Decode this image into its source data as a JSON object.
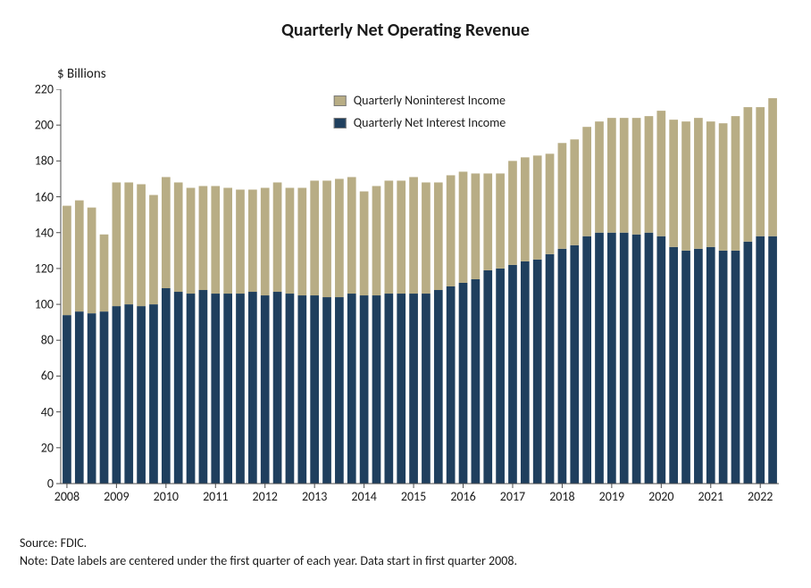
{
  "chart": {
    "type": "stacked-bar",
    "title": "Quarterly Net Operating Revenue",
    "title_fontsize": 20,
    "title_color": "#1a1a1a",
    "ylabel": "$ Billions",
    "label_fontsize": 15,
    "tick_fontsize": 14,
    "background_color": "#ffffff",
    "plot_background": "#ffffff",
    "axis_color": "#4d4d4d",
    "tick_color": "#4d4d4d",
    "grid": false,
    "ylim": [
      0,
      220
    ],
    "ytick_step": 20,
    "yticks": [
      0,
      20,
      40,
      60,
      80,
      100,
      120,
      140,
      160,
      180,
      200,
      220
    ],
    "year_labels": [
      2008,
      2009,
      2010,
      2011,
      2012,
      2013,
      2014,
      2015,
      2016,
      2017,
      2018,
      2019,
      2020,
      2021,
      2022
    ],
    "bar_gap_ratio": 0.3,
    "series": [
      {
        "name": "Quarterly Net Interest Income",
        "color": "#1f3f5e",
        "values": [
          94,
          96,
          95,
          96,
          99,
          100,
          99,
          100,
          109,
          107,
          106,
          108,
          106,
          106,
          106,
          107,
          105,
          107,
          106,
          105,
          105,
          104,
          104,
          106,
          105,
          105,
          106,
          106,
          106,
          106,
          108,
          110,
          112,
          114,
          119,
          120,
          122,
          124,
          125,
          128,
          131,
          133,
          138,
          140,
          140,
          140,
          139,
          140,
          138,
          132,
          130,
          131,
          132,
          130,
          130,
          135,
          138,
          138
        ]
      },
      {
        "name": "Quarterly Noninterest Income",
        "color": "#b8ad85",
        "values": [
          61,
          62,
          59,
          43,
          69,
          68,
          68,
          61,
          62,
          61,
          59,
          58,
          60,
          59,
          58,
          57,
          60,
          61,
          59,
          60,
          64,
          65,
          66,
          65,
          58,
          61,
          63,
          63,
          65,
          62,
          60,
          62,
          62,
          59,
          54,
          53,
          58,
          58,
          58,
          56,
          59,
          59,
          61,
          62,
          64,
          64,
          65,
          65,
          70,
          71,
          72,
          73,
          70,
          71,
          75,
          75,
          72,
          77
        ]
      }
    ],
    "legend": {
      "items": [
        {
          "label": "Quarterly Noninterest Income",
          "color": "#b8ad85"
        },
        {
          "label": "Quarterly Net Interest Income",
          "color": "#1f3f5e"
        }
      ],
      "fontsize": 14
    }
  },
  "footnotes": {
    "source": "Source: FDIC.",
    "note": "Note: Date labels are centered under the first quarter of each year. Data start in first quarter 2008.",
    "fontsize": 14,
    "color": "#1a1a1a"
  }
}
